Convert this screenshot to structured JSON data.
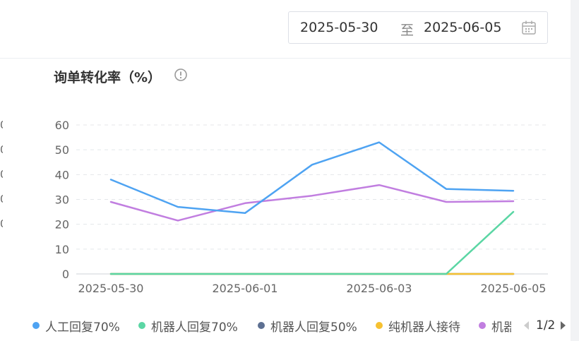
{
  "date_range": {
    "start": "2025-05-30",
    "separator": "至",
    "end": "2025-06-05"
  },
  "chart_data": {
    "type": "line",
    "title": "询单转化率（%）",
    "x": [
      "2025-05-30",
      "2025-05-31",
      "2025-06-01",
      "2025-06-02",
      "2025-06-03",
      "2025-06-04",
      "2025-06-05"
    ],
    "x_tick_labels": [
      "2025-05-30",
      "2025-06-01",
      "2025-06-03",
      "2025-06-05"
    ],
    "ylim": [
      0,
      60
    ],
    "y_ticks": [
      0,
      10,
      20,
      30,
      40,
      50,
      60
    ],
    "grid": true,
    "legend_position": "bottom",
    "series": [
      {
        "name": "人工回复70%",
        "color": "#4ea3f2",
        "values": [
          38,
          27,
          24.5,
          44,
          53,
          34.2,
          33.5
        ]
      },
      {
        "name": "机器人回复70%",
        "color": "#5bd6a4",
        "values": [
          0,
          0,
          0,
          0,
          0,
          0,
          25
        ]
      },
      {
        "name": "机器人回复50%",
        "color": "#5d7092",
        "values": [
          0,
          0,
          0,
          0,
          0,
          0,
          0
        ]
      },
      {
        "name": "纯机器人接待",
        "color": "#f6c131",
        "values": [
          0,
          0,
          0,
          0,
          0,
          0,
          0
        ]
      },
      {
        "name": "机器人",
        "color": "#c17ee0",
        "values": [
          29,
          21.5,
          28.5,
          31.5,
          35.8,
          29,
          29.3
        ]
      }
    ]
  },
  "legend_pager": "1/2"
}
